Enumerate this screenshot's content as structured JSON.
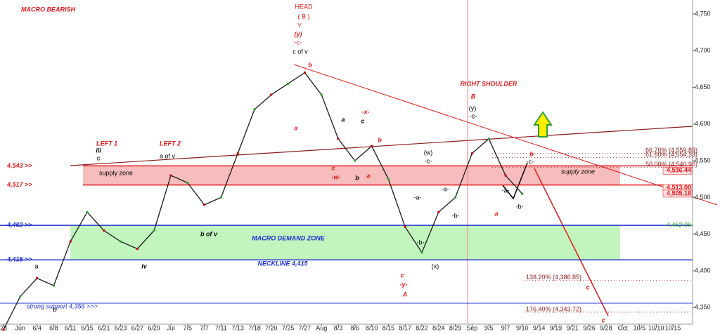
{
  "chart_data": {
    "type": "line",
    "categories": [
      "28",
      "Jun",
      "6/4",
      "6/8",
      "6/11",
      "6/15",
      "6/21",
      "6/23",
      "6/27",
      "6/29",
      "Jul",
      "7/5",
      "7/7",
      "7/11",
      "7/13",
      "7/18",
      "7/20",
      "7/25",
      "7/27",
      "Aug",
      "8/3",
      "8/6",
      "8/10",
      "8/15",
      "8/17",
      "8/22",
      "8/24",
      "8/29",
      "Sep",
      "9/5",
      "9/7",
      "9/10",
      "9/14",
      "9/19",
      "9/21",
      "9/26",
      "9/28",
      "Oct",
      "10/5",
      "10/10",
      "10/15"
    ],
    "values": [
      4320,
      4365,
      4390,
      4380,
      4440,
      4480,
      4455,
      4440,
      4430,
      4455,
      4530,
      4520,
      4490,
      4500,
      4560,
      4620,
      4640,
      4655,
      4670,
      4640,
      4580,
      4550,
      4570,
      4525,
      4460,
      4425,
      4480,
      4500,
      4560,
      4580,
      4530,
      4505,
      null,
      null,
      null,
      null,
      null,
      null,
      null,
      null,
      null
    ],
    "color": "#1a1a1a",
    "ylim": [
      4314,
      4769
    ],
    "yticks": [
      {
        "value": 4350,
        "label": "4,350"
      },
      {
        "value": 4400,
        "label": "4,400"
      },
      {
        "value": 4450,
        "label": "4,450"
      },
      {
        "value": 4500,
        "label": "4,500"
      },
      {
        "value": 4550,
        "label": "4,550"
      },
      {
        "value": 4600,
        "label": "4,600"
      },
      {
        "value": 4650,
        "label": "4,650"
      },
      {
        "value": 4700,
        "label": "4,700"
      },
      {
        "value": 4750,
        "label": "4,750"
      }
    ],
    "levels": [
      {
        "value": 4543,
        "label": "4,543 >>",
        "color": "#e31a1c"
      },
      {
        "value": 4517,
        "label": "4,517 >>",
        "color": "#e31a1c"
      },
      {
        "value": 4462,
        "label": "4,462 >>",
        "color": "#1f2fd1"
      },
      {
        "value": 4415,
        "label": "4,415 >>",
        "color": "#1f2fd1"
      },
      {
        "value": 4356,
        "label": "strong support 4,356 >>>",
        "color": "#1f2fd1"
      }
    ],
    "zones": [
      {
        "label": "supply zone",
        "low": 4517,
        "high": 4543,
        "color": "#f4a6a6"
      },
      {
        "label": "MACRO DEMAND ZONE",
        "low": 4415,
        "high": 4462,
        "color": "#aef0a8"
      }
    ],
    "price_labels": [
      {
        "value": 4536.44,
        "label": "4,536.44",
        "color": "#e31a1c"
      },
      {
        "value": 4513.0,
        "label": "4,513.00",
        "color": "#e31a1c"
      },
      {
        "value": 4505.18,
        "label": "4,505.18",
        "color": "#e31a1c"
      },
      {
        "value": 4462.06,
        "label": "4,462.06",
        "color": "#2e9e2e"
      }
    ],
    "fib_levels": [
      {
        "value": 4559.89,
        "label": "66.70% (4,559.89)"
      },
      {
        "value": 4554.33,
        "label": "61.80% (4,554.33)"
      },
      {
        "value": 4540.95,
        "label": "50.00% (4,540.95)"
      },
      {
        "value": 4386.85,
        "label": "138.20% (4,386.85)"
      },
      {
        "value": 4343.72,
        "label": "176.40% (4,343.72)"
      }
    ],
    "annotations": [
      "MACRO BEARISH",
      "HEAD",
      "( B )",
      "Y",
      "(y)",
      "-c-",
      "c of v",
      "RIGHT SHOULDER",
      "B",
      "(y)",
      "-c-",
      "LEFT 1",
      "iii",
      "c",
      "LEFT 2",
      "a of v",
      "supply zone",
      "NECKLINE 4,415",
      "b of v",
      "iv",
      "b",
      "a",
      "a",
      "c",
      "-x-",
      "b",
      "c",
      "-w-",
      "b",
      "a",
      "(w)",
      "-c-",
      "-a-",
      "-b-",
      "-a-",
      "-b-",
      "c",
      "-y-",
      "A",
      "(x)",
      "a",
      "-a-",
      "-b-",
      "-c-",
      "b",
      "c",
      "c",
      "a",
      "b"
    ]
  }
}
